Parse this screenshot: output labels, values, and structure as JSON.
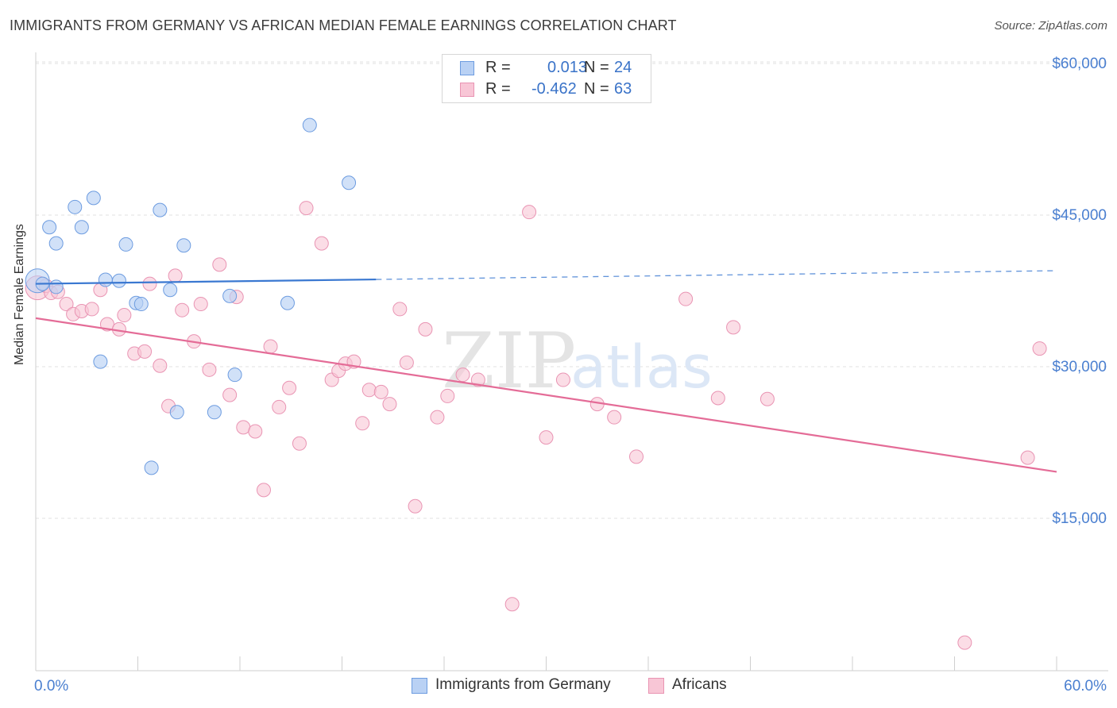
{
  "header": {
    "title": "IMMIGRANTS FROM GERMANY VS AFRICAN MEDIAN FEMALE EARNINGS CORRELATION CHART",
    "source": "Source: ZipAtlas.com"
  },
  "stats": {
    "rows": [
      {
        "r_label": "R =",
        "r_value": "0.013",
        "n_label": "N =",
        "n_value": "24"
      },
      {
        "r_label": "R =",
        "r_value": "-0.462",
        "n_label": "N =",
        "n_value": "63"
      }
    ]
  },
  "legend": {
    "items": [
      {
        "label": "Immigrants from Germany"
      },
      {
        "label": "Africans"
      }
    ]
  },
  "watermark": {
    "zip": "ZIP",
    "atlas": "atlas"
  },
  "chart_data": {
    "type": "scatter",
    "xlabel": "",
    "ylabel": "Median Female Earnings",
    "xlim": [
      0,
      60
    ],
    "ylim": [
      0,
      63000
    ],
    "x_tick_labels": [
      {
        "value": 0,
        "label": "0.0%"
      },
      {
        "value": 60,
        "label": "60.0%"
      }
    ],
    "y_tick_labels": [
      {
        "value": 15000,
        "label": "$15,000"
      },
      {
        "value": 30000,
        "label": "$30,000"
      },
      {
        "value": 45000,
        "label": "$45,000"
      },
      {
        "value": 60000,
        "label": "$60,000"
      }
    ],
    "grid": true,
    "legend_position": "bottom-center",
    "colors": {
      "blue_fill": "#b9d1f4",
      "blue_stroke": "#6d9ce0",
      "blue_line": "#3a78d1",
      "pink_fill": "#f8c6d6",
      "pink_stroke": "#e994b3",
      "pink_line": "#e46c97",
      "tick_text": "#4a7fd0"
    },
    "series": [
      {
        "name": "Immigrants from Germany",
        "color": "#b9d1f4",
        "trend": {
          "x0": 0,
          "y0": 38200,
          "x1": 60,
          "y1": 39500,
          "solid_until_x": 20
        },
        "points": [
          [
            0.4,
            38200
          ],
          [
            1.2,
            37900
          ],
          [
            0.8,
            43800
          ],
          [
            1.2,
            42200
          ],
          [
            2.3,
            45800
          ],
          [
            2.7,
            43800
          ],
          [
            3.4,
            46700
          ],
          [
            3.8,
            30500
          ],
          [
            4.1,
            38600
          ],
          [
            4.9,
            38500
          ],
          [
            5.3,
            42100
          ],
          [
            5.9,
            36300
          ],
          [
            6.2,
            36200
          ],
          [
            6.8,
            20000
          ],
          [
            7.3,
            45500
          ],
          [
            7.9,
            37600
          ],
          [
            8.3,
            25500
          ],
          [
            8.7,
            42000
          ],
          [
            10.5,
            25500
          ],
          [
            11.4,
            37000
          ],
          [
            11.7,
            29200
          ],
          [
            14.8,
            36300
          ],
          [
            16.1,
            53900
          ],
          [
            18.4,
            48200
          ]
        ]
      },
      {
        "name": "Africans",
        "color": "#f8c6d6",
        "trend": {
          "x0": 0,
          "y0": 34800,
          "x1": 60,
          "y1": 19600
        },
        "points": [
          [
            0.6,
            38000
          ],
          [
            0.9,
            37300
          ],
          [
            1.3,
            37400
          ],
          [
            1.8,
            36200
          ],
          [
            2.2,
            35200
          ],
          [
            2.7,
            35500
          ],
          [
            3.3,
            35700
          ],
          [
            3.8,
            37600
          ],
          [
            4.2,
            34200
          ],
          [
            4.9,
            33700
          ],
          [
            5.2,
            35100
          ],
          [
            5.8,
            31300
          ],
          [
            6.4,
            31500
          ],
          [
            6.7,
            38200
          ],
          [
            7.3,
            30100
          ],
          [
            7.8,
            26100
          ],
          [
            8.2,
            39000
          ],
          [
            8.6,
            35600
          ],
          [
            9.3,
            32500
          ],
          [
            9.7,
            36200
          ],
          [
            10.2,
            29700
          ],
          [
            10.8,
            40100
          ],
          [
            11.4,
            27200
          ],
          [
            11.8,
            36900
          ],
          [
            12.2,
            24000
          ],
          [
            12.9,
            23600
          ],
          [
            13.4,
            17800
          ],
          [
            13.8,
            32000
          ],
          [
            14.3,
            26000
          ],
          [
            14.9,
            27900
          ],
          [
            15.5,
            22400
          ],
          [
            15.9,
            45700
          ],
          [
            16.8,
            42200
          ],
          [
            17.4,
            28700
          ],
          [
            17.8,
            29600
          ],
          [
            18.2,
            30300
          ],
          [
            18.7,
            30500
          ],
          [
            19.2,
            24400
          ],
          [
            19.6,
            27700
          ],
          [
            20.3,
            27500
          ],
          [
            20.8,
            26300
          ],
          [
            21.4,
            35700
          ],
          [
            21.8,
            30400
          ],
          [
            22.3,
            16200
          ],
          [
            22.9,
            33700
          ],
          [
            23.6,
            25000
          ],
          [
            24.2,
            27100
          ],
          [
            25.1,
            29200
          ],
          [
            26.0,
            28700
          ],
          [
            28.0,
            6500
          ],
          [
            29.0,
            45300
          ],
          [
            30.0,
            23000
          ],
          [
            31.0,
            28700
          ],
          [
            33.0,
            26300
          ],
          [
            34.0,
            25000
          ],
          [
            35.3,
            21100
          ],
          [
            38.2,
            36700
          ],
          [
            40.1,
            26900
          ],
          [
            41.0,
            33900
          ],
          [
            43.0,
            26800
          ],
          [
            54.6,
            2700
          ],
          [
            58.3,
            21000
          ],
          [
            59.0,
            31800
          ]
        ]
      }
    ]
  }
}
